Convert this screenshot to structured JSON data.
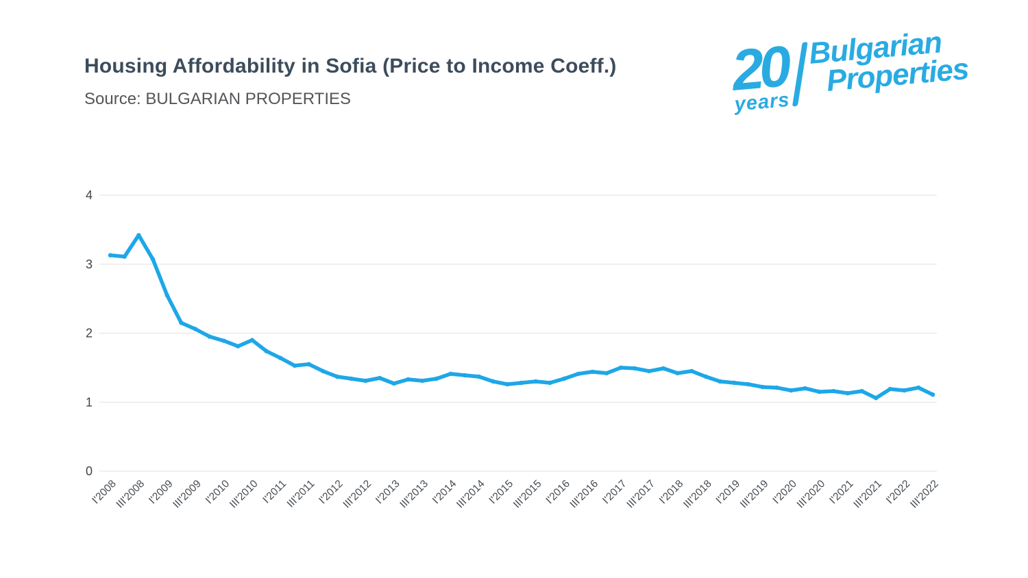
{
  "header": {
    "title": "Housing Affordability in Sofia (Price to Income Coeff.)",
    "source": "Source: BULGARIAN PROPERTIES"
  },
  "logo": {
    "years_number": "20",
    "years_word": "years",
    "brand_word1": "Bulgarian",
    "brand_word2": "Properties",
    "color": "#29abe2"
  },
  "chart_data": {
    "type": "line",
    "title": "Housing Affordability in Sofia (Price to Income Coeff.)",
    "xlabel": "",
    "ylabel": "",
    "x": [
      "I'2008",
      "II'2008",
      "III'2008",
      "IV'2008",
      "I'2009",
      "II'2009",
      "III'2009",
      "IV'2009",
      "I'2010",
      "II'2010",
      "III'2010",
      "IV'2010",
      "I'2011",
      "II'2011",
      "III'2011",
      "IV'2011",
      "I'2012",
      "II'2012",
      "III'2012",
      "IV'2012",
      "I'2013",
      "II'2013",
      "III'2013",
      "IV'2013",
      "I'2014",
      "II'2014",
      "III'2014",
      "IV'2014",
      "I'2015",
      "II'2015",
      "III'2015",
      "IV'2015",
      "I'2016",
      "II'2016",
      "III'2016",
      "IV'2016",
      "I'2017",
      "II'2017",
      "III'2017",
      "IV'2017",
      "I'2018",
      "II'2018",
      "III'2018",
      "IV'2018",
      "I'2019",
      "II'2019",
      "III'2019",
      "IV'2019",
      "I'2020",
      "II'2020",
      "III'2020",
      "IV'2020",
      "I'2021",
      "II'2021",
      "III'2021",
      "IV'2021",
      "I'2022",
      "II'2022",
      "III'2022"
    ],
    "values": [
      3.13,
      3.11,
      3.42,
      3.07,
      2.55,
      2.15,
      2.06,
      1.95,
      1.89,
      1.81,
      1.9,
      1.74,
      1.64,
      1.53,
      1.55,
      1.45,
      1.37,
      1.34,
      1.31,
      1.35,
      1.27,
      1.33,
      1.31,
      1.34,
      1.41,
      1.39,
      1.37,
      1.3,
      1.26,
      1.28,
      1.3,
      1.28,
      1.34,
      1.41,
      1.44,
      1.42,
      1.5,
      1.49,
      1.45,
      1.49,
      1.42,
      1.45,
      1.37,
      1.3,
      1.28,
      1.26,
      1.22,
      1.21,
      1.17,
      1.2,
      1.15,
      1.16,
      1.13,
      1.16,
      1.06,
      1.19,
      1.17,
      1.21,
      1.11
    ],
    "x_tick_step": 2,
    "x_tick_labels": [
      "I'2008",
      "III'2008",
      "I'2009",
      "III'2009",
      "I'2010",
      "III'2010",
      "I'2011",
      "III'2011",
      "I'2012",
      "III'2012",
      "I'2013",
      "III'2013",
      "I'2014",
      "III'2014",
      "I'2015",
      "III'2015",
      "I'2016",
      "III'2016",
      "I'2017",
      "III'2017",
      "I'2018",
      "III'2018",
      "I'2019",
      "III'2019",
      "I'2020",
      "III'2020",
      "I'2021",
      "III'2021",
      "I'2022",
      "III'2022"
    ],
    "y_ticks": [
      0,
      1,
      2,
      3,
      4
    ],
    "ylim": [
      0,
      4
    ],
    "grid": true,
    "legend": "none",
    "line_color": "#1ea7e8",
    "grid_color": "#e2e2e2",
    "axis_label_color": "#454b52"
  }
}
